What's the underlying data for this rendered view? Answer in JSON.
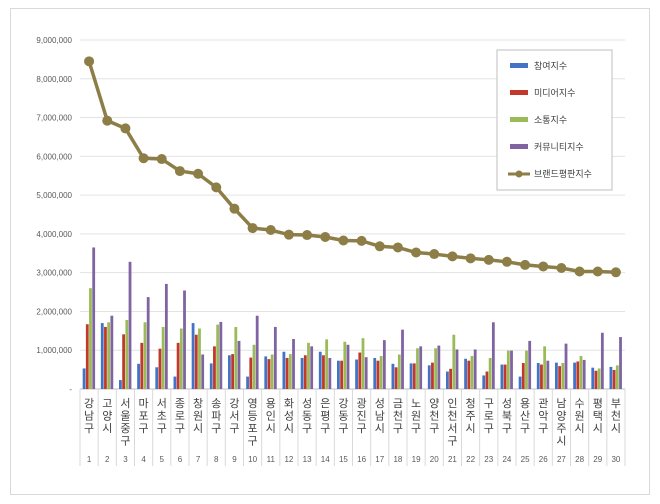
{
  "chart_data": {
    "type": "bar",
    "title": "",
    "xlabel": "",
    "ylabel": "",
    "ylim": [
      0,
      9000000
    ],
    "yticks": [
      "-",
      "1,000,000",
      "2,000,000",
      "3,000,000",
      "4,000,000",
      "5,000,000",
      "6,000,000",
      "7,000,000",
      "8,000,000",
      "9,000,000"
    ],
    "grid": true,
    "legend_position": "top-right",
    "categories": [
      "강남구",
      "고양시",
      "서울 중구",
      "마포구",
      "서초구",
      "종로구",
      "창원시",
      "송파구",
      "강서구",
      "영등포구",
      "용인시",
      "화성시",
      "성동구",
      "은평구",
      "강동구",
      "광진구",
      "성남시",
      "금천구",
      "노원구",
      "양천구",
      "인천 서구",
      "청주시",
      "구로구",
      "성북구",
      "용산구",
      "관악구",
      "남양주시",
      "수원시",
      "평택시",
      "부천시"
    ],
    "ranks": [
      "1",
      "2",
      "3",
      "4",
      "5",
      "6",
      "7",
      "8",
      "9",
      "10",
      "11",
      "12",
      "13",
      "14",
      "15",
      "16",
      "17",
      "18",
      "19",
      "20",
      "21",
      "22",
      "23",
      "24",
      "25",
      "26",
      "27",
      "28",
      "29",
      "30"
    ],
    "series": [
      {
        "name": "참여지수",
        "type": "bar",
        "color": "#4472c4",
        "values": [
          530000,
          1700000,
          230000,
          650000,
          560000,
          320000,
          1700000,
          660000,
          870000,
          320000,
          840000,
          960000,
          800000,
          960000,
          730000,
          760000,
          800000,
          650000,
          660000,
          610000,
          450000,
          780000,
          350000,
          630000,
          320000,
          670000,
          680000,
          680000,
          550000,
          570000
        ]
      },
      {
        "name": "미디어지수",
        "type": "bar",
        "color": "#c0392b",
        "values": [
          1670000,
          1600000,
          1410000,
          1190000,
          1040000,
          1190000,
          1400000,
          1100000,
          900000,
          810000,
          770000,
          800000,
          870000,
          870000,
          730000,
          940000,
          730000,
          560000,
          660000,
          680000,
          520000,
          730000,
          450000,
          630000,
          670000,
          630000,
          590000,
          710000,
          470000,
          490000
        ]
      },
      {
        "name": "소통지수",
        "type": "bar",
        "color": "#9bbb59",
        "values": [
          2600000,
          1720000,
          1780000,
          1720000,
          1600000,
          1560000,
          1560000,
          1660000,
          1600000,
          1140000,
          890000,
          900000,
          1190000,
          1280000,
          1220000,
          1310000,
          850000,
          890000,
          1050000,
          1050000,
          1400000,
          850000,
          800000,
          990000,
          990000,
          1100000,
          670000,
          850000,
          530000,
          610000
        ]
      },
      {
        "name": "커뮤니티지수",
        "type": "bar",
        "color": "#8064a2",
        "values": [
          3650000,
          1890000,
          3280000,
          2370000,
          2710000,
          2540000,
          890000,
          1730000,
          1240000,
          1890000,
          1600000,
          1290000,
          1100000,
          800000,
          1140000,
          820000,
          1260000,
          1530000,
          1100000,
          1120000,
          1020000,
          1020000,
          1720000,
          990000,
          1240000,
          730000,
          1170000,
          750000,
          1450000,
          1340000
        ]
      },
      {
        "name": "브랜드평판지수",
        "type": "line",
        "color": "#8c7e46",
        "values": [
          8450000,
          6920000,
          6720000,
          5950000,
          5930000,
          5620000,
          5550000,
          5200000,
          4650000,
          4150000,
          4100000,
          3980000,
          3970000,
          3920000,
          3830000,
          3820000,
          3680000,
          3650000,
          3520000,
          3480000,
          3420000,
          3370000,
          3330000,
          3280000,
          3200000,
          3160000,
          3120000,
          3030000,
          3030000,
          3010000
        ]
      }
    ]
  }
}
